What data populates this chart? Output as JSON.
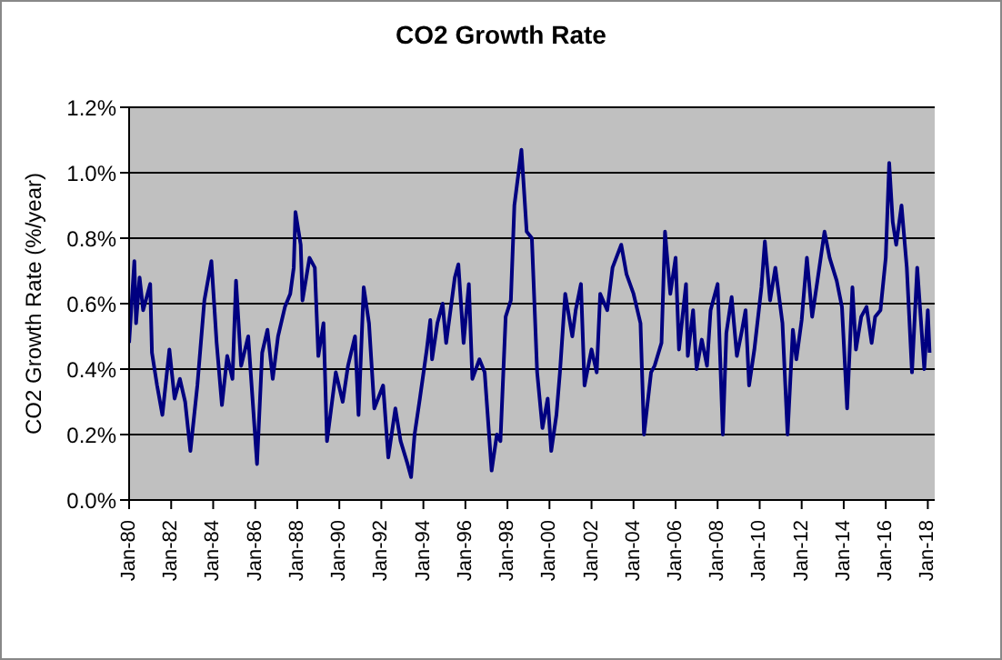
{
  "chart_data": {
    "type": "line",
    "title": "CO2 Growth Rate",
    "ylabel": "CO2 Growth Rate  (%/year)",
    "xlim": [
      "1980-01",
      "2018-05"
    ],
    "xticks": [
      {
        "value": "1980-01",
        "label": "Jan-80"
      },
      {
        "value": "1982-01",
        "label": "Jan-82"
      },
      {
        "value": "1984-01",
        "label": "Jan-84"
      },
      {
        "value": "1986-01",
        "label": "Jan-86"
      },
      {
        "value": "1988-01",
        "label": "Jan-88"
      },
      {
        "value": "1990-01",
        "label": "Jan-90"
      },
      {
        "value": "1992-01",
        "label": "Jan-92"
      },
      {
        "value": "1994-01",
        "label": "Jan-94"
      },
      {
        "value": "1996-01",
        "label": "Jan-96"
      },
      {
        "value": "1998-01",
        "label": "Jan-98"
      },
      {
        "value": "2000-01",
        "label": "Jan-00"
      },
      {
        "value": "2002-01",
        "label": "Jan-02"
      },
      {
        "value": "2004-01",
        "label": "Jan-04"
      },
      {
        "value": "2006-01",
        "label": "Jan-06"
      },
      {
        "value": "2008-01",
        "label": "Jan-08"
      },
      {
        "value": "2010-01",
        "label": "Jan-10"
      },
      {
        "value": "2012-01",
        "label": "Jan-12"
      },
      {
        "value": "2014-01",
        "label": "Jan-14"
      },
      {
        "value": "2016-01",
        "label": "Jan-16"
      },
      {
        "value": "2018-01",
        "label": "Jan-18"
      }
    ],
    "ylim": [
      0,
      1.2
    ],
    "yticks": [
      {
        "value": 0,
        "label": "0.0%"
      },
      {
        "value": 0.2,
        "label": "0.2%"
      },
      {
        "value": 0.4,
        "label": "0.4%"
      },
      {
        "value": 0.6,
        "label": "0.6%"
      },
      {
        "value": 0.8,
        "label": "0.8%"
      },
      {
        "value": 1.0,
        "label": "1.0%"
      },
      {
        "value": 1.2,
        "label": "1.2%"
      }
    ],
    "grid": "y",
    "legend": false,
    "marker": "none",
    "line_style": "solid",
    "series": [
      {
        "color": "#000080",
        "x": [
          "1980-01",
          "1980-04",
          "1980-05",
          "1980-07",
          "1980-09",
          "1981-01",
          "1981-02",
          "1981-05",
          "1981-08",
          "1981-12",
          "1982-03",
          "1982-06",
          "1982-09",
          "1982-12",
          "1983-04",
          "1983-08",
          "1983-12",
          "1984-03",
          "1984-06",
          "1984-09",
          "1984-12",
          "1985-02",
          "1985-05",
          "1985-09",
          "1986-02",
          "1986-05",
          "1986-08",
          "1986-11",
          "1987-02",
          "1987-06",
          "1987-09",
          "1987-11",
          "1987-12",
          "1988-03",
          "1988-04",
          "1988-08",
          "1988-11",
          "1989-01",
          "1989-04",
          "1989-06",
          "1989-11",
          "1990-03",
          "1990-06",
          "1990-10",
          "1990-12",
          "1991-03",
          "1991-06",
          "1991-09",
          "1992-02",
          "1992-05",
          "1992-09",
          "1992-12",
          "1993-04",
          "1993-06",
          "1993-08",
          "1993-11",
          "1994-03",
          "1994-05",
          "1994-06",
          "1994-09",
          "1994-12",
          "1995-02",
          "1995-07",
          "1995-09",
          "1995-12",
          "1996-03",
          "1996-05",
          "1996-09",
          "1996-12",
          "1997-04",
          "1997-07",
          "1997-09",
          "1997-12",
          "1998-03",
          "1998-05",
          "1998-09",
          "1998-12",
          "1999-03",
          "1999-06",
          "1999-09",
          "1999-12",
          "2000-02",
          "2000-05",
          "2000-07",
          "2000-10",
          "2001-02",
          "2001-04",
          "2001-07",
          "2001-09",
          "2002-01",
          "2002-04",
          "2002-06",
          "2002-10",
          "2003-01",
          "2003-06",
          "2003-09",
          "2004-01",
          "2004-05",
          "2004-07",
          "2004-11",
          "2005-01",
          "2005-05",
          "2005-07",
          "2005-10",
          "2006-01",
          "2006-03",
          "2006-07",
          "2006-08",
          "2006-11",
          "2007-01",
          "2007-04",
          "2007-07",
          "2007-09",
          "2008-01",
          "2008-04",
          "2008-06",
          "2008-09",
          "2008-12",
          "2009-03",
          "2009-05",
          "2009-07",
          "2009-10",
          "2010-02",
          "2010-04",
          "2010-07",
          "2010-10",
          "2011-02",
          "2011-05",
          "2011-08",
          "2011-10",
          "2012-01",
          "2012-04",
          "2012-07",
          "2012-10",
          "2013-02",
          "2013-05",
          "2013-09",
          "2013-12",
          "2014-03",
          "2014-06",
          "2014-08",
          "2014-11",
          "2015-02",
          "2015-05",
          "2015-07",
          "2015-10",
          "2016-01",
          "2016-03",
          "2016-05",
          "2016-07",
          "2016-10",
          "2017-01",
          "2017-04",
          "2017-07",
          "2017-11",
          "2018-01",
          "2018-02"
        ],
        "values": [
          0.48,
          0.73,
          0.54,
          0.68,
          0.58,
          0.66,
          0.45,
          0.35,
          0.26,
          0.46,
          0.31,
          0.37,
          0.3,
          0.15,
          0.35,
          0.61,
          0.73,
          0.48,
          0.29,
          0.44,
          0.37,
          0.67,
          0.41,
          0.5,
          0.11,
          0.45,
          0.52,
          0.37,
          0.5,
          0.59,
          0.63,
          0.71,
          0.88,
          0.78,
          0.61,
          0.74,
          0.71,
          0.44,
          0.54,
          0.18,
          0.39,
          0.3,
          0.41,
          0.5,
          0.26,
          0.65,
          0.54,
          0.28,
          0.35,
          0.13,
          0.28,
          0.18,
          0.11,
          0.07,
          0.2,
          0.31,
          0.46,
          0.55,
          0.43,
          0.54,
          0.6,
          0.48,
          0.68,
          0.72,
          0.48,
          0.66,
          0.37,
          0.43,
          0.39,
          0.09,
          0.2,
          0.18,
          0.56,
          0.61,
          0.9,
          1.07,
          0.82,
          0.8,
          0.39,
          0.22,
          0.31,
          0.15,
          0.26,
          0.39,
          0.63,
          0.5,
          0.58,
          0.66,
          0.35,
          0.46,
          0.39,
          0.63,
          0.58,
          0.71,
          0.78,
          0.69,
          0.63,
          0.54,
          0.2,
          0.39,
          0.41,
          0.48,
          0.82,
          0.63,
          0.74,
          0.46,
          0.66,
          0.44,
          0.58,
          0.4,
          0.49,
          0.41,
          0.58,
          0.66,
          0.2,
          0.51,
          0.62,
          0.44,
          0.52,
          0.58,
          0.35,
          0.46,
          0.65,
          0.79,
          0.61,
          0.71,
          0.54,
          0.2,
          0.52,
          0.43,
          0.55,
          0.74,
          0.56,
          0.67,
          0.82,
          0.74,
          0.67,
          0.59,
          0.28,
          0.65,
          0.46,
          0.56,
          0.59,
          0.48,
          0.56,
          0.58,
          0.74,
          1.03,
          0.85,
          0.78,
          0.9,
          0.71,
          0.39,
          0.71,
          0.4,
          0.58,
          0.45
        ]
      }
    ]
  }
}
